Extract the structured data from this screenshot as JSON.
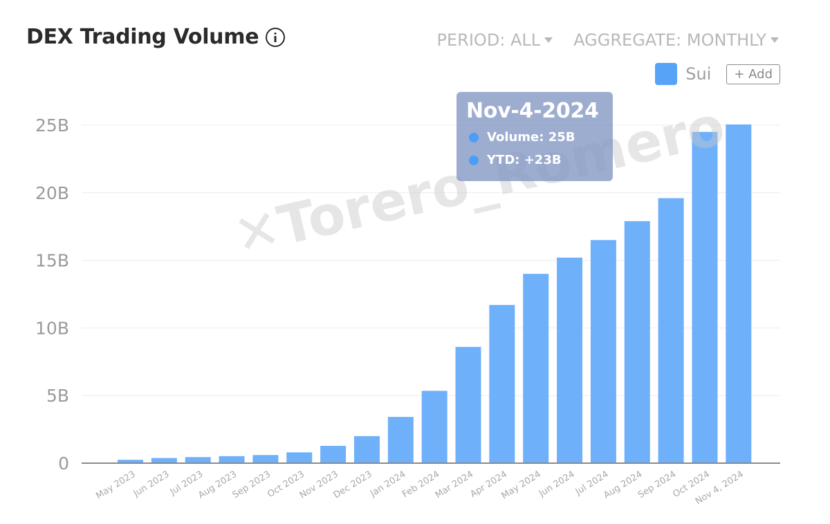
{
  "header": {
    "title": "DEX Trading Volume",
    "period_label": "PERIOD: ALL",
    "aggregate_label": "AGGREGATE: MONTHLY"
  },
  "legend": {
    "series_name": "Sui",
    "add_label": "+ Add"
  },
  "tooltip": {
    "date": "Nov-4-2024",
    "volume": "Volume: 25B",
    "ytd": "YTD: +23B"
  },
  "watermark": "Torero_Romero",
  "colors": {
    "bar": "#6fb0fb",
    "legend": "#57a3f8",
    "tooltip_dot": "#4a9ef7"
  },
  "icons": {
    "info": "info-circle-icon",
    "caret": "caret-down-icon",
    "watermark_logo": "x-logo-icon"
  },
  "chart_data": {
    "type": "bar",
    "title": "DEX Trading Volume",
    "categories": [
      "May 2023",
      "Jun 2023",
      "Jul 2023",
      "Aug 2023",
      "Sep 2023",
      "Oct 2023",
      "Nov 2023",
      "Dec 2023",
      "Jan 2024",
      "Feb 2024",
      "Mar 2024",
      "Apr 2024",
      "May 2024",
      "Jun 2024",
      "Jul 2024",
      "Aug 2024",
      "Sep 2024",
      "Oct 2024",
      "Nov 4, 2024"
    ],
    "series": [
      {
        "name": "Sui",
        "values": [
          0.25,
          0.38,
          0.45,
          0.52,
          0.6,
          0.8,
          1.28,
          2.0,
          3.42,
          5.35,
          8.6,
          11.7,
          14.0,
          15.2,
          16.5,
          17.9,
          19.6,
          24.5,
          25.05
        ]
      }
    ],
    "yticks": [
      0,
      5,
      10,
      15,
      20,
      25
    ],
    "ytick_labels": [
      "0",
      "5B",
      "10B",
      "15B",
      "20B",
      "25B"
    ],
    "ylim": [
      0,
      25
    ],
    "grid": true,
    "legend_position": "top-right"
  }
}
